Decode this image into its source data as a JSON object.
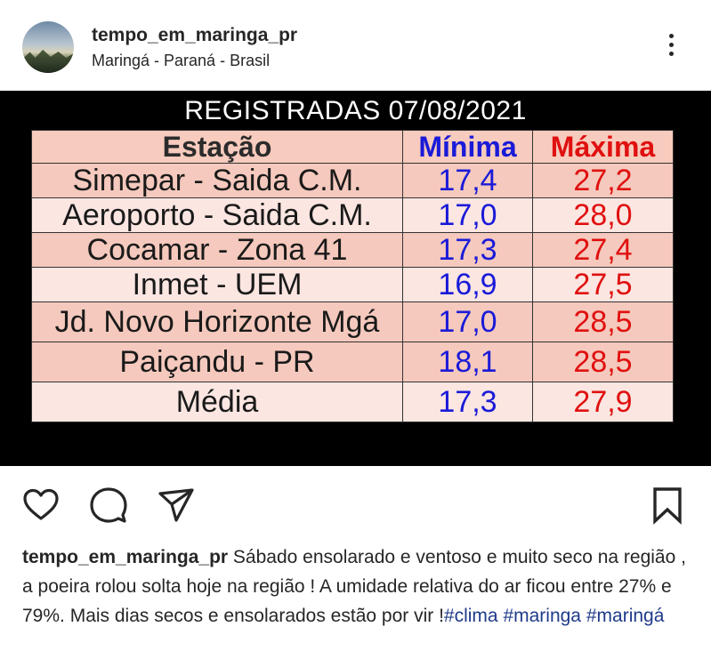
{
  "header": {
    "username": "tempo_em_maringa_pr",
    "location": "Maringá - Paraná - Brasil"
  },
  "image": {
    "title": "REGISTRADAS 07/08/2021",
    "columns": [
      "Estação",
      "Mínima",
      "Máxima"
    ],
    "rows": [
      {
        "station": "Simepar - Saida C.M.",
        "min": "17,4",
        "max": "27,2"
      },
      {
        "station": "Aeroporto - Saida C.M.",
        "min": "17,0",
        "max": "28,0"
      },
      {
        "station": "Cocamar - Zona 41",
        "min": "17,3",
        "max": "27,4"
      },
      {
        "station": "Inmet - UEM",
        "min": "16,9",
        "max": "27,5"
      },
      {
        "station": "Jd. Novo Horizonte Mgá",
        "min": "17,0",
        "max": "28,5"
      },
      {
        "station": "Paiçandu - PR",
        "min": "18,1",
        "max": "28,5"
      },
      {
        "station": "Média",
        "min": "17,3",
        "max": "27,9"
      }
    ],
    "colors": {
      "min": "#1a1ad8",
      "max": "#e01010",
      "row_dark": "#f5c9bd",
      "row_light": "#fbe6e2"
    }
  },
  "actions": {
    "icons": [
      "heart-icon",
      "comment-icon",
      "share-icon",
      "bookmark-icon"
    ]
  },
  "caption": {
    "username": "tempo_em_maringa_pr",
    "text": " Sábado ensolarado e ventoso e muito seco na região , a poeira rolou solta hoje na região ! A umidade relativa do ar ficou entre 27% e 79%. Mais dias secos e ensolarados estão por vir !",
    "hashtags": [
      "#clima",
      "#maringa",
      "#maringá"
    ]
  }
}
